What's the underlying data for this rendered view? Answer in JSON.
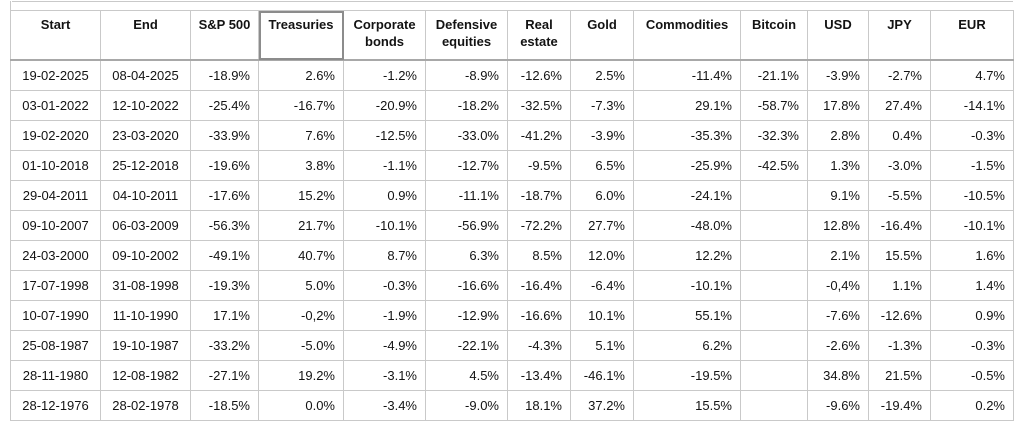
{
  "table": {
    "columns": [
      "Start",
      "End",
      "S&P 500",
      "Treasuries",
      "Corporate bonds",
      "Defensive equities",
      "Real estate",
      "Gold",
      "Commodities",
      "Bitcoin",
      "USD",
      "JPY",
      "EUR"
    ],
    "selected_header": "Treasuries",
    "selected_header_index": 3,
    "rows": [
      [
        "19-02-2025",
        "08-04-2025",
        "-18.9%",
        "2.6%",
        "-1.2%",
        "-8.9%",
        "-12.6%",
        "2.5%",
        "-11.4%",
        "-21.1%",
        "-3.9%",
        "-2.7%",
        "4.7%"
      ],
      [
        "03-01-2022",
        "12-10-2022",
        "-25.4%",
        "-16.7%",
        "-20.9%",
        "-18.2%",
        "-32.5%",
        "-7.3%",
        "29.1%",
        "-58.7%",
        "17.8%",
        "27.4%",
        "-14.1%"
      ],
      [
        "19-02-2020",
        "23-03-2020",
        "-33.9%",
        "7.6%",
        "-12.5%",
        "-33.0%",
        "-41.2%",
        "-3.9%",
        "-35.3%",
        "-32.3%",
        "2.8%",
        "0.4%",
        "-0.3%"
      ],
      [
        "01-10-2018",
        "25-12-2018",
        "-19.6%",
        "3.8%",
        "-1.1%",
        "-12.7%",
        "-9.5%",
        "6.5%",
        "-25.9%",
        "-42.5%",
        "1.3%",
        "-3.0%",
        "-1.5%"
      ],
      [
        "29-04-2011",
        "04-10-2011",
        "-17.6%",
        "15.2%",
        "0.9%",
        "-11.1%",
        "-18.7%",
        "6.0%",
        "-24.1%",
        "",
        "9.1%",
        "-5.5%",
        "-10.5%"
      ],
      [
        "09-10-2007",
        "06-03-2009",
        "-56.3%",
        "21.7%",
        "-10.1%",
        "-56.9%",
        "-72.2%",
        "27.7%",
        "-48.0%",
        "",
        "12.8%",
        "-16.4%",
        "-10.1%"
      ],
      [
        "24-03-2000",
        "09-10-2002",
        "-49.1%",
        "40.7%",
        "8.7%",
        "6.3%",
        "8.5%",
        "12.0%",
        "12.2%",
        "",
        "2.1%",
        "15.5%",
        "1.6%"
      ],
      [
        "17-07-1998",
        "31-08-1998",
        "-19.3%",
        "5.0%",
        "-0.3%",
        "-16.6%",
        "-16.4%",
        "-6.4%",
        "-10.1%",
        "",
        "-0,4%",
        "1.1%",
        "1.4%"
      ],
      [
        "10-07-1990",
        "11-10-1990",
        "17.1%",
        "-0,2%",
        "-1.9%",
        "-12.9%",
        "-16.6%",
        "10.1%",
        "55.1%",
        "",
        "-7.6%",
        "-12.6%",
        "0.9%"
      ],
      [
        "25-08-1987",
        "19-10-1987",
        "-33.2%",
        "-5.0%",
        "-4.9%",
        "-22.1%",
        "-4.3%",
        "5.1%",
        "6.2%",
        "",
        "-2.6%",
        "-1.3%",
        "-0.3%"
      ],
      [
        "28-11-1980",
        "12-08-1982",
        "-27.1%",
        "19.2%",
        "-3.1%",
        "4.5%",
        "-13.4%",
        "-46.1%",
        "-19.5%",
        "",
        "34.8%",
        "21.5%",
        "-0.5%"
      ],
      [
        "28-12-1976",
        "28-02-1978",
        "-18.5%",
        "0.0%",
        "-3.4%",
        "-9.0%",
        "18.1%",
        "37.2%",
        "15.5%",
        "",
        "-9.6%",
        "-19.4%",
        "0.2%"
      ]
    ],
    "colors": {
      "text": "#131313",
      "border": "#c9c9c9",
      "header_divider": "#a8a8a8",
      "selected_border": "#8c8c8c",
      "background": "#ffffff"
    }
  }
}
